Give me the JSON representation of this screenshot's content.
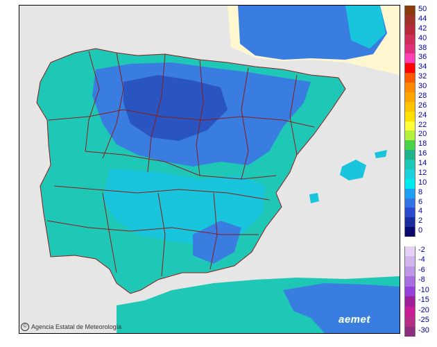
{
  "map": {
    "credit_text": "Agencia Estatal de Meteorología",
    "logo_text": "aemet",
    "colors": {
      "sea": "#e6e6e6",
      "france_land": "#fff7d0",
      "cold_blue": "#3a7de0",
      "mid_blue": "#2a55c0",
      "cyan": "#19c5dd",
      "teal": "#1fc7b6",
      "boundary": "#8b1a1a"
    }
  },
  "legend": {
    "positive": [
      {
        "label": "50",
        "color": "#8b3a0e"
      },
      {
        "label": "44",
        "color": "#a0322a"
      },
      {
        "label": "42",
        "color": "#b8293c"
      },
      {
        "label": "40",
        "color": "#cf2d5a"
      },
      {
        "label": "38",
        "color": "#e02f7a"
      },
      {
        "label": "36",
        "color": "#ff3fb4"
      },
      {
        "label": "34",
        "color": "#ff0000"
      },
      {
        "label": "32",
        "color": "#ff5a00"
      },
      {
        "label": "30",
        "color": "#ff8a00"
      },
      {
        "label": "28",
        "color": "#ffa500"
      },
      {
        "label": "26",
        "color": "#ffc400"
      },
      {
        "label": "24",
        "color": "#ffe000"
      },
      {
        "label": "22",
        "color": "#ffff3c"
      },
      {
        "label": "20",
        "color": "#b4f03c"
      },
      {
        "label": "18",
        "color": "#4ad24a"
      },
      {
        "label": "16",
        "color": "#1fb48c"
      },
      {
        "label": "14",
        "color": "#1fc7b6"
      },
      {
        "label": "12",
        "color": "#19d2dc"
      },
      {
        "label": "10",
        "color": "#00ebf0"
      },
      {
        "label": "8",
        "color": "#1ea0f0"
      },
      {
        "label": "6",
        "color": "#3273e6"
      },
      {
        "label": "4",
        "color": "#2a4bcf"
      },
      {
        "label": "2",
        "color": "#1a2d9f"
      },
      {
        "label": "0",
        "color": "#0a0a6e"
      }
    ],
    "negative": [
      {
        "label": "-2",
        "color": "#e6d2f5"
      },
      {
        "label": "-4",
        "color": "#d2b4ee"
      },
      {
        "label": "-6",
        "color": "#be96e6"
      },
      {
        "label": "-8",
        "color": "#a86ee0"
      },
      {
        "label": "-10",
        "color": "#9640dc"
      },
      {
        "label": "-15",
        "color": "#a0209b"
      },
      {
        "label": "-20",
        "color": "#c81e96"
      },
      {
        "label": "-25",
        "color": "#b42d87"
      },
      {
        "label": "-30",
        "color": "#8c2d7d"
      }
    ]
  }
}
